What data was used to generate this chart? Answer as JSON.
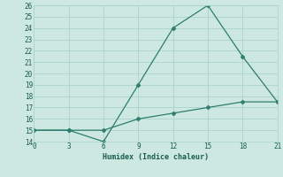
{
  "line1_x": [
    0,
    3,
    6,
    9,
    12,
    15,
    18,
    21
  ],
  "line1_y": [
    15,
    15,
    14,
    19,
    24,
    26,
    21.5,
    17.5
  ],
  "line2_x": [
    0,
    3,
    6,
    9,
    12,
    15,
    18,
    21
  ],
  "line2_y": [
    15,
    15,
    15,
    16,
    16.5,
    17,
    17.5,
    17.5
  ],
  "line_color": "#2e7d6e",
  "marker": "D",
  "marker_size": 2.5,
  "xlabel": "Humidex (Indice chaleur)",
  "xlim": [
    0,
    21
  ],
  "ylim": [
    14,
    26
  ],
  "xticks": [
    0,
    3,
    6,
    9,
    12,
    15,
    18,
    21
  ],
  "yticks": [
    14,
    15,
    16,
    17,
    18,
    19,
    20,
    21,
    22,
    23,
    24,
    25,
    26
  ],
  "bg_color": "#cce8e0",
  "grid_color": "#aad4cc",
  "font_color": "#1a5c50",
  "line_width": 0.9
}
